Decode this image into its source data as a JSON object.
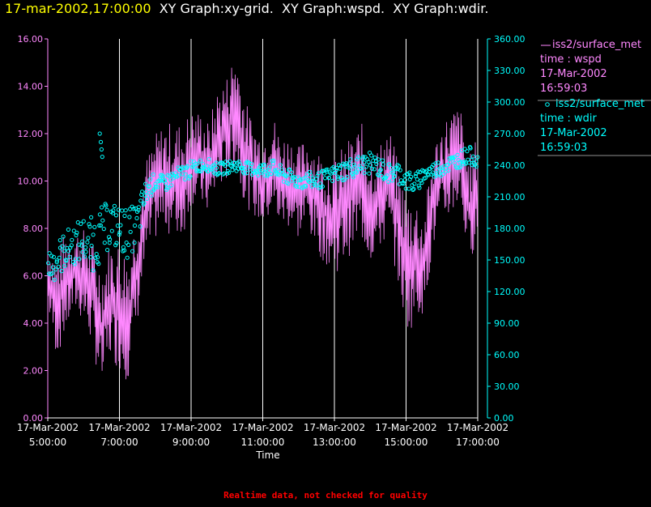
{
  "header": {
    "timestamp": "17-mar-2002,17:00:00",
    "graphs": [
      "XY Graph:xy-grid.",
      "XY Graph:wspd.",
      "XY Graph:wdir."
    ]
  },
  "legend": [
    {
      "source": "iss2/surface_met",
      "line1": "time : wspd",
      "line2": "17-Mar-2002",
      "line3": "16:59:03",
      "marker": "line"
    },
    {
      "source": "iss2/surface_met",
      "line1": "time : wdir",
      "line2": "17-Mar-2002",
      "line3": "16:59:03",
      "marker": "circle"
    }
  ],
  "footer": {
    "note": "Realtime data, not checked for quality"
  },
  "colors": {
    "wspd": "#ff88ff",
    "wdir": "#00ffff",
    "grid": "#ffffff",
    "timestamp": "#ffff00",
    "note": "#ff0000"
  },
  "chart_data": {
    "type": "line",
    "xlabel": "Time",
    "x_ticks": [
      {
        "date": "17-Mar-2002",
        "time": "5:00:00"
      },
      {
        "date": "17-Mar-2002",
        "time": "7:00:00"
      },
      {
        "date": "17-Mar-2002",
        "time": "9:00:00"
      },
      {
        "date": "17-Mar-2002",
        "time": "11:00:00"
      },
      {
        "date": "17-Mar-2002",
        "time": "13:00:00"
      },
      {
        "date": "17-Mar-2002",
        "time": "15:00:00"
      },
      {
        "date": "17-Mar-2002",
        "time": "17:00:00"
      }
    ],
    "xlim_hours": [
      5.0,
      17.0
    ],
    "y_left": {
      "ylim": [
        0,
        16
      ],
      "ticks": [
        "0.00",
        "2.00",
        "4.00",
        "6.00",
        "8.00",
        "10.00",
        "12.00",
        "14.00",
        "16.00"
      ]
    },
    "y_right": {
      "ylim": [
        0,
        360
      ],
      "ticks": [
        "0.00",
        "30.00",
        "60.00",
        "90.00",
        "120.00",
        "150.00",
        "180.00",
        "210.00",
        "240.00",
        "270.00",
        "300.00",
        "330.00",
        "360.00"
      ]
    },
    "vertical_grid": true,
    "series": [
      {
        "name": "wspd",
        "axis": "left",
        "style": "line",
        "hours": [
          5.0,
          5.25,
          5.5,
          5.75,
          6.0,
          6.25,
          6.5,
          6.75,
          7.0,
          7.25,
          7.5,
          7.75,
          8.0,
          8.25,
          8.5,
          8.75,
          9.0,
          9.25,
          9.5,
          9.75,
          10.0,
          10.25,
          10.5,
          10.75,
          11.0,
          11.25,
          11.5,
          11.75,
          12.0,
          12.25,
          12.5,
          12.75,
          13.0,
          13.25,
          13.5,
          13.75,
          14.0,
          14.25,
          14.5,
          14.75,
          15.0,
          15.25,
          15.5,
          15.75,
          16.0,
          16.25,
          16.5,
          16.75,
          17.0
        ],
        "values": [
          6.0,
          4.5,
          5.5,
          6.5,
          6.0,
          5.0,
          4.0,
          4.5,
          5.0,
          3.5,
          6.0,
          8.5,
          9.5,
          10.5,
          10.0,
          10.0,
          11.0,
          11.5,
          11.0,
          12.0,
          12.5,
          13.0,
          11.5,
          10.5,
          10.0,
          10.5,
          10.0,
          10.0,
          9.5,
          10.0,
          9.5,
          9.0,
          8.5,
          9.0,
          9.5,
          10.0,
          9.0,
          9.5,
          10.0,
          9.0,
          7.0,
          7.0,
          6.0,
          9.5,
          10.5,
          11.0,
          11.5,
          9.0,
          10.0
        ],
        "upper": [
          7.5,
          7.0,
          8.0,
          8.0,
          8.0,
          7.5,
          6.5,
          7.5,
          7.5,
          7.0,
          9.0,
          11.0,
          12.0,
          12.5,
          12.5,
          12.5,
          13.0,
          13.0,
          12.5,
          14.0,
          14.5,
          15.8,
          13.5,
          12.5,
          12.0,
          13.0,
          12.0,
          12.0,
          11.5,
          12.0,
          11.5,
          11.0,
          11.0,
          11.5,
          12.0,
          12.5,
          11.5,
          11.5,
          12.5,
          11.0,
          9.5,
          9.5,
          8.5,
          11.5,
          12.5,
          13.0,
          13.3,
          11.0,
          12.0
        ],
        "lower": [
          4.5,
          2.5,
          3.5,
          4.5,
          4.0,
          3.0,
          1.0,
          2.5,
          2.0,
          1.5,
          4.0,
          6.5,
          7.5,
          8.0,
          7.5,
          7.5,
          9.0,
          9.0,
          8.5,
          9.5,
          10.0,
          10.5,
          9.0,
          8.5,
          8.0,
          8.5,
          8.0,
          8.0,
          7.5,
          8.0,
          7.0,
          6.5,
          6.0,
          6.5,
          7.0,
          7.5,
          6.5,
          7.0,
          7.5,
          6.0,
          3.5,
          4.0,
          4.5,
          7.0,
          8.0,
          8.5,
          9.0,
          6.5,
          7.5
        ]
      },
      {
        "name": "wdir",
        "axis": "right",
        "style": "scatter",
        "hours": [
          5.0,
          5.25,
          5.5,
          5.75,
          6.0,
          6.25,
          6.5,
          6.75,
          7.0,
          7.25,
          7.5,
          7.75,
          8.0,
          8.25,
          8.5,
          8.75,
          9.0,
          9.25,
          9.5,
          9.75,
          10.0,
          10.25,
          10.5,
          10.75,
          11.0,
          11.25,
          11.5,
          11.75,
          12.0,
          12.25,
          12.5,
          12.75,
          13.0,
          13.25,
          13.5,
          13.75,
          14.0,
          14.25,
          14.5,
          14.75,
          15.0,
          15.25,
          15.5,
          15.75,
          16.0,
          16.25,
          16.5,
          16.75,
          17.0
        ],
        "values": [
          145,
          150,
          160,
          165,
          170,
          165,
          175,
          185,
          180,
          175,
          185,
          215,
          225,
          222,
          228,
          232,
          236,
          240,
          240,
          236,
          238,
          240,
          238,
          236,
          235,
          238,
          232,
          228,
          225,
          226,
          225,
          228,
          232,
          235,
          238,
          240,
          242,
          238,
          232,
          234,
          226,
          222,
          232,
          235,
          238,
          242,
          246,
          250,
          245
        ],
        "spread": [
          20,
          18,
          18,
          20,
          22,
          26,
          26,
          22,
          22,
          24,
          20,
          12,
          8,
          8,
          8,
          8,
          8,
          6,
          6,
          6,
          6,
          6,
          6,
          6,
          8,
          8,
          8,
          8,
          8,
          8,
          8,
          8,
          8,
          10,
          10,
          10,
          10,
          10,
          10,
          10,
          10,
          10,
          8,
          8,
          8,
          8,
          8,
          8,
          8
        ],
        "outliers": [
          [
            6.45,
            270
          ],
          [
            6.48,
            262
          ],
          [
            6.5,
            255
          ],
          [
            6.52,
            248
          ]
        ]
      }
    ]
  }
}
